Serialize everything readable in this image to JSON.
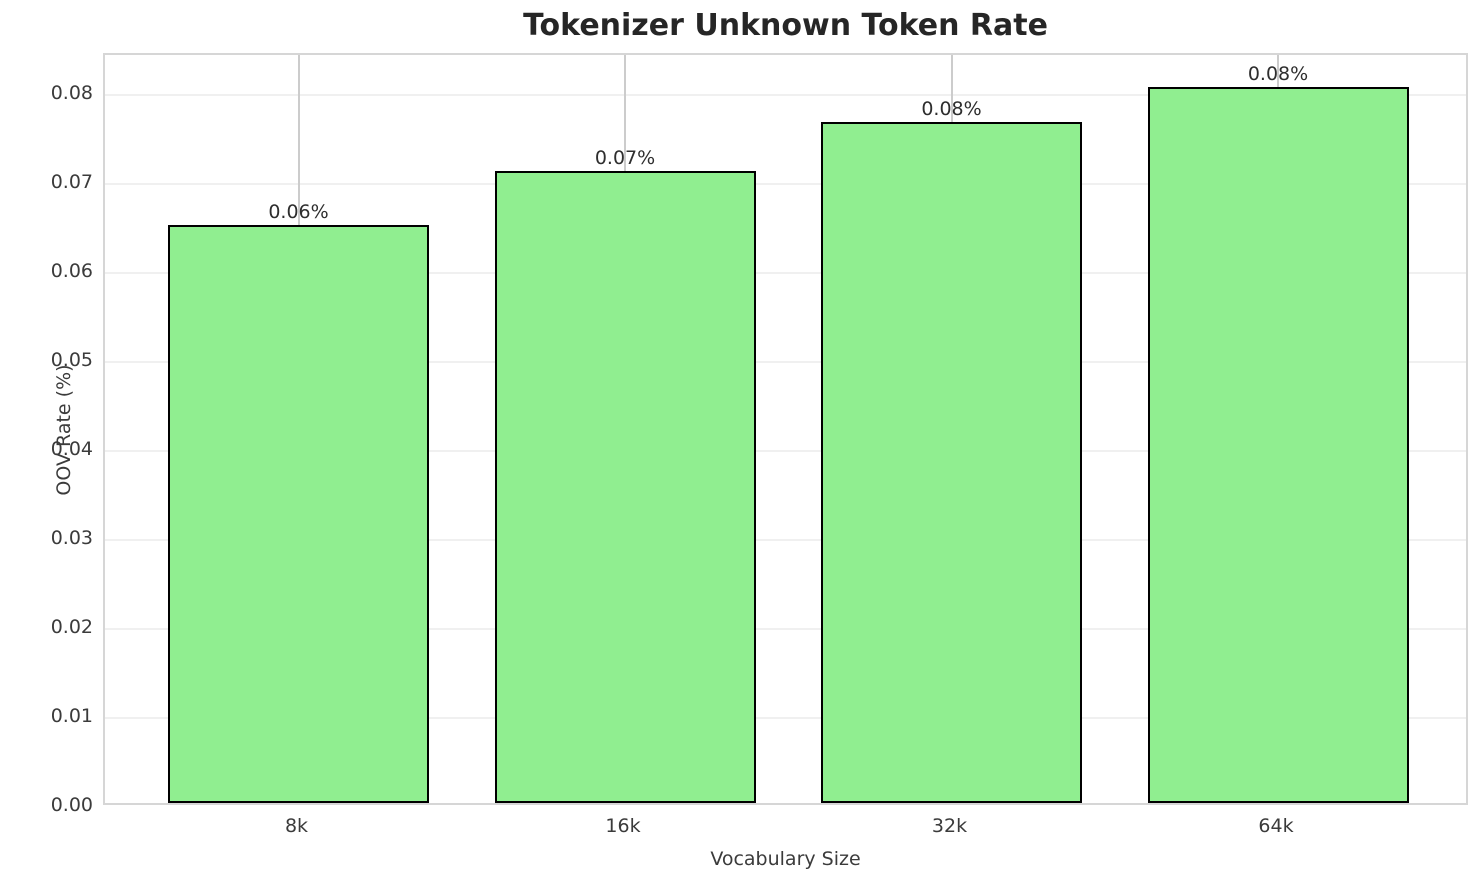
{
  "chart_data": {
    "type": "bar",
    "title": "Tokenizer Unknown Token Rate",
    "xlabel": "Vocabulary Size",
    "ylabel": "OOV Rate (%)",
    "categories": [
      "8k",
      "16k",
      "32k",
      "64k"
    ],
    "values": [
      0.065,
      0.071,
      0.0765,
      0.0805
    ],
    "bar_labels": [
      "0.06%",
      "0.07%",
      "0.08%",
      "0.08%"
    ],
    "ytick_labels": [
      "0.00",
      "0.01",
      "0.02",
      "0.03",
      "0.04",
      "0.05",
      "0.06",
      "0.07",
      "0.08"
    ],
    "ytick_values": [
      0.0,
      0.01,
      0.02,
      0.03,
      0.04,
      0.05,
      0.06,
      0.07,
      0.08
    ],
    "ylim": [
      0,
      0.0845
    ],
    "grid": true,
    "legend": "none",
    "bar_color": "#90EE90",
    "bar_edge_color": "#000000"
  }
}
